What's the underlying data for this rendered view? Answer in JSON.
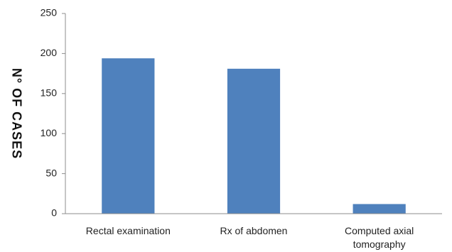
{
  "chart_data": {
    "type": "bar",
    "title": "",
    "xlabel": "",
    "ylabel": "N° OF  CASES",
    "categories": [
      "Rectal examination",
      "Rx of abdomen",
      "Computed axial tomography"
    ],
    "category_lines": [
      [
        "Rectal examination"
      ],
      [
        "Rx of abdomen"
      ],
      [
        "Computed axial",
        "tomography"
      ]
    ],
    "values": [
      194,
      181,
      12
    ],
    "ylim": [
      0,
      250
    ],
    "yticks": [
      "0",
      "50",
      "100",
      "150",
      "200",
      "250"
    ],
    "grid": false,
    "legend": "none",
    "colors": {
      "bar": "#4F81BD",
      "axis": "#8C8C8C"
    }
  }
}
